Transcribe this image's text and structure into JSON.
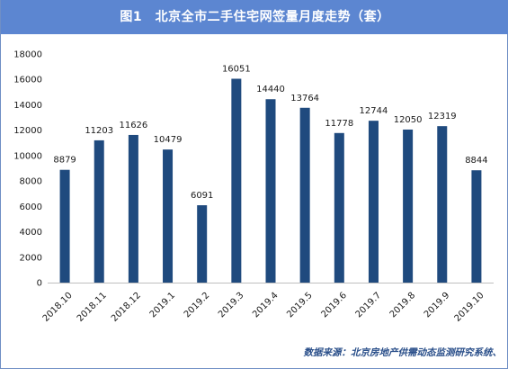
{
  "header": {
    "title": "图1　北京全市二手住宅网签量月度走势（套）"
  },
  "footer": {
    "source": "数据来源：北京房地产供需动态监测研究系统、"
  },
  "colors": {
    "bar": "#1f4a7e",
    "title_bg": "#5c86d1",
    "axis": "#bfbfbf"
  },
  "chart_data": {
    "type": "bar",
    "title": "图1　北京全市二手住宅网签量月度走势（套）",
    "xlabel": "",
    "ylabel": "",
    "ylim": [
      0,
      18000
    ],
    "yticks": [
      0,
      2000,
      4000,
      6000,
      8000,
      10000,
      12000,
      14000,
      16000,
      18000
    ],
    "grid": false,
    "legend": "none",
    "categories": [
      "2018.10",
      "2018.11",
      "2018.12",
      "2019.1",
      "2019.2",
      "2019.3",
      "2019.4",
      "2019.5",
      "2019.6",
      "2019.7",
      "2019.8",
      "2019.9",
      "2019.10"
    ],
    "values": [
      8879,
      11203,
      11626,
      10479,
      6091,
      16051,
      14440,
      13764,
      11778,
      12744,
      12050,
      12319,
      8844
    ]
  }
}
